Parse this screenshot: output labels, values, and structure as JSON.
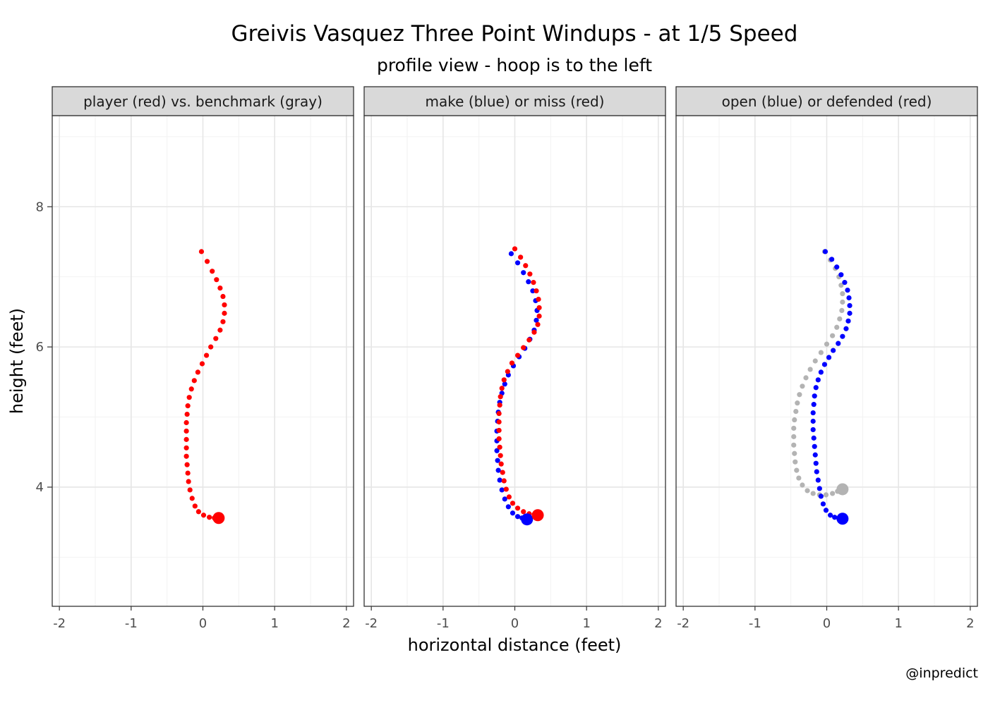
{
  "chart_data": {
    "type": "scatter",
    "title": "Greivis Vasquez Three Point Windups - at 1/5 Speed",
    "subtitle": "profile view - hoop is to the left",
    "xlabel": "horizontal distance (feet)",
    "ylabel": "height (feet)",
    "caption": "@inpredict",
    "xlim": [
      -2.1,
      2.1
    ],
    "ylim": [
      2.3,
      9.3
    ],
    "x_ticks": [
      -2,
      -1,
      0,
      1,
      2
    ],
    "y_ticks": [
      4,
      6,
      8
    ],
    "grid": true,
    "colors": {
      "red": "#ff0000",
      "blue": "#0000ff",
      "gray": "#b3b3b3"
    },
    "panels": [
      {
        "strip": "player (red) vs. benchmark (gray)",
        "series": [
          {
            "color": "red",
            "points": [
              [
                -0.02,
                7.36
              ],
              [
                0.06,
                7.22
              ],
              [
                0.13,
                7.08
              ],
              [
                0.19,
                6.96
              ],
              [
                0.24,
                6.84
              ],
              [
                0.28,
                6.72
              ],
              [
                0.3,
                6.6
              ],
              [
                0.3,
                6.48
              ],
              [
                0.28,
                6.36
              ],
              [
                0.24,
                6.24
              ],
              [
                0.18,
                6.12
              ],
              [
                0.11,
                6.0
              ],
              [
                0.05,
                5.88
              ],
              [
                -0.01,
                5.76
              ],
              [
                -0.07,
                5.64
              ],
              [
                -0.12,
                5.52
              ],
              [
                -0.16,
                5.4
              ],
              [
                -0.19,
                5.28
              ],
              [
                -0.21,
                5.16
              ],
              [
                -0.22,
                5.04
              ],
              [
                -0.23,
                4.92
              ],
              [
                -0.23,
                4.8
              ],
              [
                -0.23,
                4.68
              ],
              [
                -0.23,
                4.56
              ],
              [
                -0.23,
                4.44
              ],
              [
                -0.22,
                4.32
              ],
              [
                -0.21,
                4.2
              ],
              [
                -0.2,
                4.08
              ],
              [
                -0.18,
                3.96
              ],
              [
                -0.15,
                3.84
              ],
              [
                -0.11,
                3.73
              ],
              [
                -0.06,
                3.65
              ],
              [
                0.01,
                3.6
              ],
              [
                0.09,
                3.57
              ],
              [
                0.16,
                3.56
              ]
            ]
          },
          {
            "color": "red",
            "end_point": [
              0.22,
              3.56
            ]
          }
        ]
      },
      {
        "strip": "make (blue) or miss (red)",
        "series": [
          {
            "color": "blue",
            "points": [
              [
                -0.05,
                7.33
              ],
              [
                0.04,
                7.2
              ],
              [
                0.12,
                7.06
              ],
              [
                0.19,
                6.93
              ],
              [
                0.25,
                6.8
              ],
              [
                0.29,
                6.66
              ],
              [
                0.31,
                6.52
              ],
              [
                0.3,
                6.38
              ],
              [
                0.27,
                6.24
              ],
              [
                0.21,
                6.11
              ],
              [
                0.14,
                5.98
              ],
              [
                0.06,
                5.86
              ],
              [
                -0.02,
                5.73
              ],
              [
                -0.09,
                5.6
              ],
              [
                -0.14,
                5.47
              ],
              [
                -0.18,
                5.34
              ],
              [
                -0.21,
                5.21
              ],
              [
                -0.23,
                5.07
              ],
              [
                -0.24,
                4.94
              ],
              [
                -0.25,
                4.8
              ],
              [
                -0.25,
                4.66
              ],
              [
                -0.25,
                4.52
              ],
              [
                -0.24,
                4.38
              ],
              [
                -0.23,
                4.24
              ],
              [
                -0.21,
                4.1
              ],
              [
                -0.18,
                3.96
              ],
              [
                -0.14,
                3.83
              ],
              [
                -0.09,
                3.72
              ],
              [
                -0.03,
                3.63
              ],
              [
                0.04,
                3.58
              ],
              [
                0.1,
                3.56
              ]
            ]
          },
          {
            "color": "red",
            "points": [
              [
                0.0,
                7.4
              ],
              [
                0.08,
                7.28
              ],
              [
                0.15,
                7.16
              ],
              [
                0.21,
                7.04
              ],
              [
                0.26,
                6.92
              ],
              [
                0.3,
                6.8
              ],
              [
                0.33,
                6.68
              ],
              [
                0.34,
                6.56
              ],
              [
                0.34,
                6.44
              ],
              [
                0.32,
                6.32
              ],
              [
                0.27,
                6.21
              ],
              [
                0.2,
                6.1
              ],
              [
                0.12,
                5.99
              ],
              [
                0.04,
                5.88
              ],
              [
                -0.04,
                5.77
              ],
              [
                -0.1,
                5.65
              ],
              [
                -0.15,
                5.53
              ],
              [
                -0.18,
                5.41
              ],
              [
                -0.2,
                5.29
              ],
              [
                -0.21,
                5.17
              ],
              [
                -0.22,
                5.05
              ],
              [
                -0.22,
                4.93
              ],
              [
                -0.22,
                4.81
              ],
              [
                -0.22,
                4.69
              ],
              [
                -0.21,
                4.57
              ],
              [
                -0.2,
                4.45
              ],
              [
                -0.19,
                4.33
              ],
              [
                -0.17,
                4.21
              ],
              [
                -0.15,
                4.09
              ],
              [
                -0.12,
                3.97
              ],
              [
                -0.08,
                3.86
              ],
              [
                -0.03,
                3.77
              ],
              [
                0.04,
                3.7
              ],
              [
                0.12,
                3.65
              ],
              [
                0.2,
                3.62
              ],
              [
                0.27,
                3.61
              ]
            ]
          },
          {
            "color": "blue",
            "end_point": [
              0.17,
              3.54
            ]
          },
          {
            "color": "red",
            "end_point": [
              0.32,
              3.6
            ]
          }
        ]
      },
      {
        "strip": "open (blue) or defended (red)",
        "series": [
          {
            "color": "gray",
            "points": [
              [
                -0.03,
                7.36
              ],
              [
                0.05,
                7.24
              ],
              [
                0.12,
                7.12
              ],
              [
                0.17,
                7.0
              ],
              [
                0.2,
                6.88
              ],
              [
                0.22,
                6.76
              ],
              [
                0.22,
                6.64
              ],
              [
                0.21,
                6.52
              ],
              [
                0.18,
                6.4
              ],
              [
                0.14,
                6.28
              ],
              [
                0.08,
                6.16
              ],
              [
                0.0,
                6.04
              ],
              [
                -0.08,
                5.92
              ],
              [
                -0.16,
                5.8
              ],
              [
                -0.23,
                5.68
              ],
              [
                -0.29,
                5.56
              ],
              [
                -0.34,
                5.44
              ],
              [
                -0.38,
                5.32
              ],
              [
                -0.41,
                5.2
              ],
              [
                -0.43,
                5.08
              ],
              [
                -0.45,
                4.96
              ],
              [
                -0.46,
                4.84
              ],
              [
                -0.46,
                4.72
              ],
              [
                -0.46,
                4.6
              ],
              [
                -0.45,
                4.48
              ],
              [
                -0.44,
                4.36
              ],
              [
                -0.42,
                4.24
              ],
              [
                -0.39,
                4.13
              ],
              [
                -0.34,
                4.03
              ],
              [
                -0.27,
                3.95
              ],
              [
                -0.19,
                3.91
              ],
              [
                -0.1,
                3.89
              ],
              [
                -0.01,
                3.89
              ],
              [
                0.08,
                3.91
              ],
              [
                0.15,
                3.94
              ]
            ]
          },
          {
            "color": "blue",
            "points": [
              [
                -0.02,
                7.36
              ],
              [
                0.07,
                7.25
              ],
              [
                0.14,
                7.14
              ],
              [
                0.2,
                7.03
              ],
              [
                0.25,
                6.92
              ],
              [
                0.29,
                6.81
              ],
              [
                0.31,
                6.7
              ],
              [
                0.32,
                6.59
              ],
              [
                0.32,
                6.48
              ],
              [
                0.3,
                6.37
              ],
              [
                0.27,
                6.26
              ],
              [
                0.22,
                6.15
              ],
              [
                0.16,
                6.05
              ],
              [
                0.09,
                5.95
              ],
              [
                0.03,
                5.85
              ],
              [
                -0.03,
                5.75
              ],
              [
                -0.08,
                5.64
              ],
              [
                -0.12,
                5.53
              ],
              [
                -0.15,
                5.42
              ],
              [
                -0.17,
                5.3
              ],
              [
                -0.18,
                5.18
              ],
              [
                -0.19,
                5.06
              ],
              [
                -0.19,
                4.94
              ],
              [
                -0.19,
                4.82
              ],
              [
                -0.18,
                4.7
              ],
              [
                -0.17,
                4.58
              ],
              [
                -0.16,
                4.46
              ],
              [
                -0.15,
                4.34
              ],
              [
                -0.14,
                4.22
              ],
              [
                -0.12,
                4.1
              ],
              [
                -0.1,
                3.98
              ],
              [
                -0.08,
                3.87
              ],
              [
                -0.05,
                3.76
              ],
              [
                -0.01,
                3.67
              ],
              [
                0.05,
                3.6
              ],
              [
                0.11,
                3.57
              ],
              [
                0.17,
                3.55
              ]
            ]
          },
          {
            "color": "gray",
            "end_point": [
              0.22,
              3.97
            ]
          },
          {
            "color": "blue",
            "end_point": [
              0.22,
              3.55
            ]
          }
        ]
      }
    ]
  }
}
